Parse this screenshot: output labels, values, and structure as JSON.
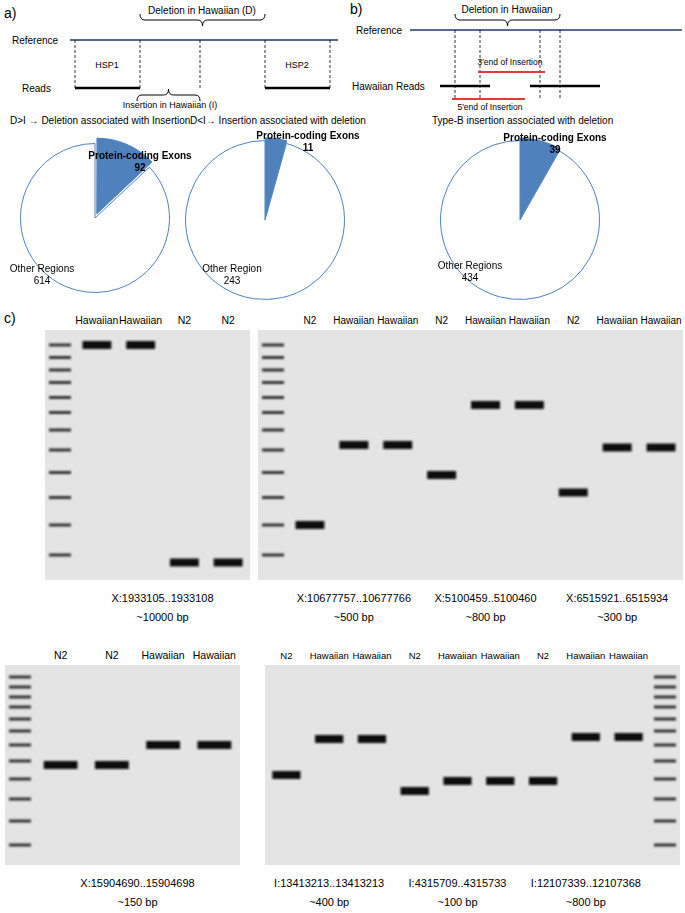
{
  "chart_data": [
    {
      "type": "pie",
      "title": "D>I → Deletion associated with Insertion",
      "categories": [
        "Protein-coding Exons",
        "Other Regions"
      ],
      "values": [
        92,
        614
      ],
      "colors": [
        "#4f81bd",
        "#ffffff"
      ],
      "data_labels": true
    },
    {
      "type": "pie",
      "title": "D<I→ Insertion associated with deletion",
      "categories": [
        "Protein-coding Exons",
        "Other Region"
      ],
      "values": [
        11,
        243
      ],
      "colors": [
        "#4f81bd",
        "#ffffff"
      ],
      "data_labels": true
    },
    {
      "type": "pie",
      "title": "Type-B insertion associated with deletion",
      "categories": [
        "Protein-coding Exons",
        "Other Regions"
      ],
      "values": [
        39,
        434
      ],
      "colors": [
        "#4f81bd",
        "#ffffff"
      ],
      "data_labels": true
    }
  ],
  "panels": {
    "a": {
      "label": "a)",
      "diagram": {
        "reference": "Reference",
        "deletion": "Deletion in Hawaiian (D)",
        "hsp1": "HSP1",
        "hsp2": "HSP2",
        "reads": "Reads",
        "insertion": "Insertion in Hawaiian (I)"
      }
    },
    "b": {
      "label": "b)",
      "diagram": {
        "reference": "Reference",
        "deletion": "Deletion in Hawaiian",
        "reads": "Hawaiian Reads",
        "insertion_3": "3'end of Insertion",
        "insertion_5": "5'end of Insertion"
      }
    },
    "c": {
      "label": "c)",
      "gels": [
        {
          "lanes": [
            "Hawaiian",
            "Hawaiian",
            "N2",
            "N2"
          ],
          "loci": [
            {
              "locus": "X:1933105..1933108",
              "size": "~10000 bp"
            }
          ]
        },
        {
          "lanes": [
            "N2",
            "Hawaiian",
            "Hawaiian",
            "N2",
            "Hawaiian",
            "Hawaiian",
            "N2",
            "Hawaiian",
            "Hawaiian"
          ],
          "loci": [
            {
              "locus": "X:10677757..10677766",
              "size": "~500 bp"
            },
            {
              "locus": "X:5100459..5100460",
              "size": "~800 bp"
            },
            {
              "locus": "X:6515921..6515934",
              "size": "~300 bp"
            }
          ]
        },
        {
          "lanes": [
            "N2",
            "N2",
            "Hawaiian",
            "Hawaiian"
          ],
          "loci": [
            {
              "locus": "X:15904690..15904698",
              "size": "~150 bp"
            }
          ]
        },
        {
          "lanes": [
            "N2",
            "Hawaiian",
            "Hawaiian",
            "N2",
            "Hawaiian",
            "Hawaiian",
            "N2",
            "Hawaiian",
            "Hawaiian"
          ],
          "loci": [
            {
              "locus": "I:13413213..13413213",
              "size": "~400 bp"
            },
            {
              "locus": "I:4315709..4315733",
              "size": "~100 bp"
            },
            {
              "locus": "I:12107339..12107368",
              "size": "~800 bp"
            }
          ]
        }
      ]
    }
  }
}
